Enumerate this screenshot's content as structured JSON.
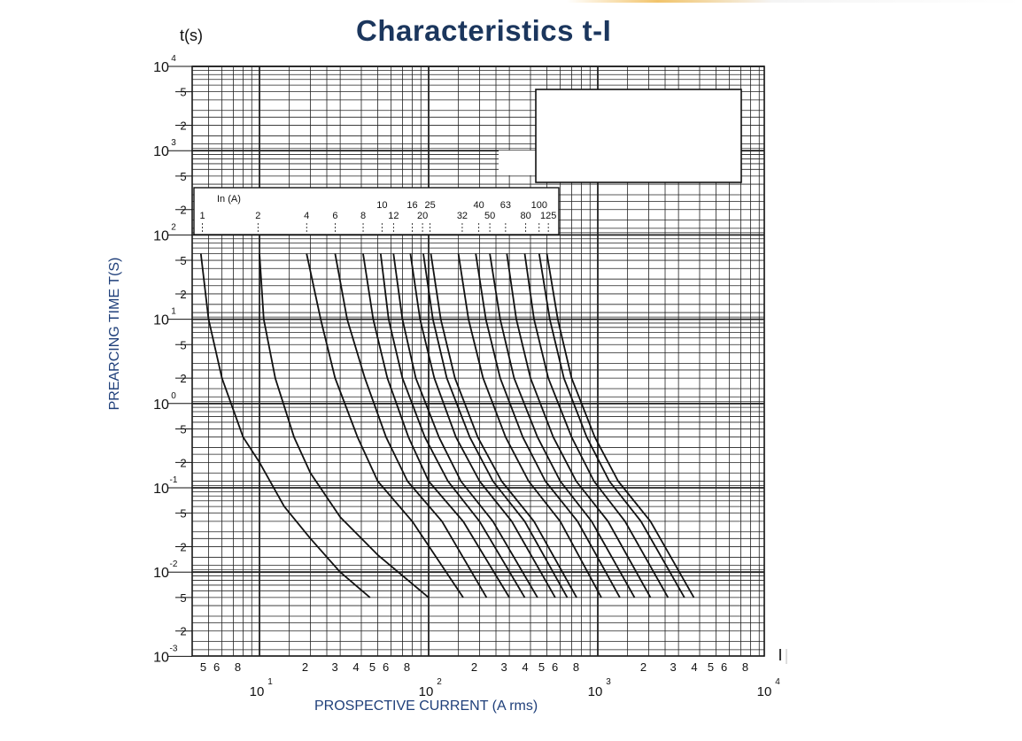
{
  "title": "Characteristics t-I",
  "chart_data": {
    "type": "line",
    "title": "Characteristics t-I",
    "ylabel": "PREARCING TIME T(S)",
    "xlabel": "PROSPECTIVE CURRENT (A rms)",
    "y_unit_label": "t(s)",
    "x_unit_label": "I",
    "legend_header": "In (A)",
    "x_scale": "log",
    "y_scale": "log",
    "xlim": [
      4,
      10000
    ],
    "ylim": [
      0.001,
      10000
    ],
    "grid": true,
    "x_decade_labels": [
      {
        "value": 10,
        "base": "10",
        "exp": "1"
      },
      {
        "value": 100,
        "base": "10",
        "exp": "2"
      },
      {
        "value": 1000,
        "base": "10",
        "exp": "3"
      },
      {
        "value": 10000,
        "base": "10",
        "exp": "4"
      }
    ],
    "x_minor_tick_labels": [
      {
        "value": 5,
        "label": "5"
      },
      {
        "value": 6,
        "label": "6"
      },
      {
        "value": 8,
        "label": "8"
      },
      {
        "value": 20,
        "label": "2"
      },
      {
        "value": 30,
        "label": "3"
      },
      {
        "value": 40,
        "label": "4"
      },
      {
        "value": 50,
        "label": "5"
      },
      {
        "value": 60,
        "label": "6"
      },
      {
        "value": 80,
        "label": "8"
      },
      {
        "value": 200,
        "label": "2"
      },
      {
        "value": 300,
        "label": "3"
      },
      {
        "value": 400,
        "label": "4"
      },
      {
        "value": 500,
        "label": "5"
      },
      {
        "value": 600,
        "label": "6"
      },
      {
        "value": 800,
        "label": "8"
      },
      {
        "value": 2000,
        "label": "2"
      },
      {
        "value": 3000,
        "label": "3"
      },
      {
        "value": 4000,
        "label": "4"
      },
      {
        "value": 5000,
        "label": "5"
      },
      {
        "value": 6000,
        "label": "6"
      },
      {
        "value": 8000,
        "label": "8"
      }
    ],
    "y_decade_labels": [
      {
        "value": 10000,
        "base": "10",
        "exp": "4"
      },
      {
        "value": 1000,
        "base": "10",
        "exp": "3"
      },
      {
        "value": 100,
        "base": "10",
        "exp": "2"
      },
      {
        "value": 10,
        "base": "10",
        "exp": "1"
      },
      {
        "value": 1,
        "base": "10",
        "exp": "0"
      },
      {
        "value": 0.1,
        "base": "10",
        "exp": "-1"
      },
      {
        "value": 0.01,
        "base": "10",
        "exp": "-2"
      },
      {
        "value": 0.001,
        "base": "10",
        "exp": "-3"
      }
    ],
    "y_minor_tick_labels": [
      {
        "value": 5000,
        "label": "5"
      },
      {
        "value": 2000,
        "label": "2"
      },
      {
        "value": 500,
        "label": "5"
      },
      {
        "value": 200,
        "label": "2"
      },
      {
        "value": 50,
        "label": "5"
      },
      {
        "value": 20,
        "label": "2"
      },
      {
        "value": 5,
        "label": "5"
      },
      {
        "value": 2,
        "label": "2"
      },
      {
        "value": 0.5,
        "label": "5"
      },
      {
        "value": 0.2,
        "label": "2"
      },
      {
        "value": 0.05,
        "label": "5"
      },
      {
        "value": 0.02,
        "label": "2"
      },
      {
        "value": 0.005,
        "label": "5"
      },
      {
        "value": 0.002,
        "label": "2"
      }
    ],
    "series": [
      {
        "name": "1",
        "label_x": 4.6,
        "label_row": "top",
        "points": [
          [
            4.5,
            60
          ],
          [
            5,
            10
          ],
          [
            6,
            2
          ],
          [
            8,
            0.4
          ],
          [
            10,
            0.2
          ],
          [
            14,
            0.06
          ],
          [
            20,
            0.025
          ],
          [
            30,
            0.01
          ],
          [
            45,
            0.005
          ]
        ]
      },
      {
        "name": "2",
        "label_x": 9.8,
        "label_row": "top",
        "points": [
          [
            10,
            60
          ],
          [
            10.6,
            10
          ],
          [
            12.4,
            2
          ],
          [
            16,
            0.4
          ],
          [
            20,
            0.15
          ],
          [
            30,
            0.045
          ],
          [
            50,
            0.016
          ],
          [
            100,
            0.005
          ]
        ]
      },
      {
        "name": "4",
        "label_x": 19,
        "label_row": "top",
        "points": [
          [
            19,
            60
          ],
          [
            23,
            10
          ],
          [
            28,
            2
          ],
          [
            38,
            0.4
          ],
          [
            50,
            0.12
          ],
          [
            80,
            0.04
          ],
          [
            160,
            0.005
          ]
        ]
      },
      {
        "name": "6",
        "label_x": 28,
        "label_row": "top",
        "points": [
          [
            28,
            60
          ],
          [
            33,
            10
          ],
          [
            42,
            2
          ],
          [
            56,
            0.4
          ],
          [
            75,
            0.12
          ],
          [
            120,
            0.04
          ],
          [
            220,
            0.005
          ]
        ]
      },
      {
        "name": "8",
        "label_x": 41,
        "label_row": "top",
        "points": [
          [
            41,
            60
          ],
          [
            47,
            10
          ],
          [
            57,
            2
          ],
          [
            76,
            0.4
          ],
          [
            100,
            0.12
          ],
          [
            160,
            0.04
          ],
          [
            300,
            0.005
          ]
        ]
      },
      {
        "name": "10",
        "label_x": 53,
        "label_row": "upper",
        "points": [
          [
            52,
            60
          ],
          [
            58,
            10
          ],
          [
            70,
            2
          ],
          [
            95,
            0.4
          ],
          [
            130,
            0.12
          ],
          [
            200,
            0.04
          ],
          [
            370,
            0.005
          ]
        ]
      },
      {
        "name": "12",
        "label_x": 62,
        "label_row": "top",
        "points": [
          [
            62,
            60
          ],
          [
            70,
            10
          ],
          [
            84,
            2
          ],
          [
            115,
            0.4
          ],
          [
            155,
            0.12
          ],
          [
            240,
            0.04
          ],
          [
            440,
            0.005
          ]
        ]
      },
      {
        "name": "16",
        "label_x": 80,
        "label_row": "upper",
        "points": [
          [
            78,
            60
          ],
          [
            89,
            10
          ],
          [
            108,
            2
          ],
          [
            145,
            0.4
          ],
          [
            200,
            0.12
          ],
          [
            310,
            0.04
          ],
          [
            560,
            0.005
          ]
        ]
      },
      {
        "name": "20",
        "label_x": 92,
        "label_row": "top",
        "points": [
          [
            93,
            60
          ],
          [
            106,
            10
          ],
          [
            128,
            2
          ],
          [
            175,
            0.4
          ],
          [
            240,
            0.12
          ],
          [
            370,
            0.04
          ],
          [
            660,
            0.005
          ]
        ]
      },
      {
        "name": "25",
        "label_x": 102,
        "label_row": "upper",
        "points": [
          [
            103,
            60
          ],
          [
            118,
            10
          ],
          [
            143,
            2
          ],
          [
            195,
            0.4
          ],
          [
            270,
            0.12
          ],
          [
            420,
            0.04
          ],
          [
            750,
            0.005
          ]
        ]
      },
      {
        "name": "32",
        "label_x": 158,
        "label_row": "top",
        "points": [
          [
            150,
            60
          ],
          [
            172,
            10
          ],
          [
            210,
            2
          ],
          [
            285,
            0.4
          ],
          [
            390,
            0.12
          ],
          [
            600,
            0.04
          ],
          [
            1050,
            0.005
          ]
        ]
      },
      {
        "name": "40",
        "label_x": 198,
        "label_row": "upper",
        "points": [
          [
            190,
            60
          ],
          [
            218,
            10
          ],
          [
            265,
            2
          ],
          [
            360,
            0.4
          ],
          [
            490,
            0.12
          ],
          [
            760,
            0.04
          ],
          [
            1350,
            0.005
          ]
        ]
      },
      {
        "name": "50",
        "label_x": 230,
        "label_row": "top",
        "points": [
          [
            230,
            60
          ],
          [
            265,
            10
          ],
          [
            320,
            2
          ],
          [
            440,
            0.4
          ],
          [
            600,
            0.12
          ],
          [
            920,
            0.04
          ],
          [
            1650,
            0.005
          ]
        ]
      },
      {
        "name": "63",
        "label_x": 285,
        "label_row": "upper",
        "points": [
          [
            290,
            60
          ],
          [
            330,
            10
          ],
          [
            400,
            2
          ],
          [
            545,
            0.4
          ],
          [
            745,
            0.12
          ],
          [
            1150,
            0.04
          ],
          [
            2050,
            0.005
          ]
        ]
      },
      {
        "name": "80",
        "label_x": 375,
        "label_row": "top",
        "points": [
          [
            370,
            60
          ],
          [
            420,
            10
          ],
          [
            510,
            2
          ],
          [
            700,
            0.4
          ],
          [
            950,
            0.12
          ],
          [
            1450,
            0.04
          ],
          [
            2600,
            0.005
          ]
        ]
      },
      {
        "name": "100",
        "label_x": 450,
        "label_row": "upper",
        "points": [
          [
            450,
            60
          ],
          [
            520,
            10
          ],
          [
            630,
            2
          ],
          [
            860,
            0.4
          ],
          [
            1170,
            0.12
          ],
          [
            1800,
            0.04
          ],
          [
            3250,
            0.005
          ]
        ]
      },
      {
        "name": "125",
        "label_x": 510,
        "label_row": "top",
        "points": [
          [
            500,
            60
          ],
          [
            580,
            10
          ],
          [
            700,
            2
          ],
          [
            960,
            0.4
          ],
          [
            1320,
            0.12
          ],
          [
            2050,
            0.04
          ],
          [
            3700,
            0.005
          ]
        ]
      }
    ]
  }
}
